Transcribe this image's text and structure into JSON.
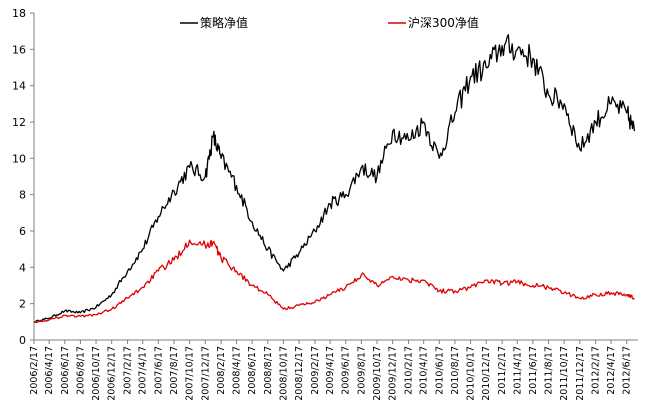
{
  "chart_data": {
    "type": "line",
    "title": "",
    "xlabel": "",
    "ylabel": "",
    "ylim": [
      0,
      18
    ],
    "yticks": [
      0,
      2,
      4,
      6,
      8,
      10,
      12,
      14,
      16,
      18
    ],
    "grid": false,
    "legend_position": "top",
    "x_tick_labels": [
      "2006/2/17",
      "2006/4/17",
      "2006/6/17",
      "2006/8/17",
      "2006/10/17",
      "2006/12/17",
      "2007/2/17",
      "2007/4/17",
      "2007/6/17",
      "2007/8/17",
      "2007/10/17",
      "2007/12/17",
      "2008/2/17",
      "2008/4/17",
      "2008/6/17",
      "2008/8/17",
      "2008/10/17",
      "2008/12/17",
      "2009/2/17",
      "2009/4/17",
      "2009/6/17",
      "2009/8/17",
      "2009/10/17",
      "2009/12/17",
      "2010/2/17",
      "2010/4/17",
      "2010/6/17",
      "2010/8/17",
      "2010/10/17",
      "2010/12/17",
      "2011/2/17",
      "2011/4/17",
      "2011/6/17",
      "2011/8/17",
      "2011/10/17",
      "2011/12/17",
      "2012/2/17",
      "2012/4/17",
      "2012/6/17"
    ],
    "series": [
      {
        "name": "策略净值",
        "color": "#000000",
        "x": [
          "2006/2/17",
          "2006/4/17",
          "2006/6/17",
          "2006/8/17",
          "2006/10/17",
          "2006/12/17",
          "2007/2/17",
          "2007/4/17",
          "2007/6/17",
          "2007/8/17",
          "2007/10/17",
          "2007/12/17",
          "2008/1/17",
          "2008/2/17",
          "2008/4/17",
          "2008/6/17",
          "2008/8/17",
          "2008/10/17",
          "2008/12/17",
          "2009/2/17",
          "2009/4/17",
          "2009/6/17",
          "2009/8/17",
          "2009/10/17",
          "2009/12/17",
          "2010/2/17",
          "2010/4/17",
          "2010/6/17",
          "2010/8/17",
          "2010/10/17",
          "2010/12/17",
          "2011/2/17",
          "2011/4/17",
          "2011/6/17",
          "2011/8/17",
          "2011/10/17",
          "2011/12/17",
          "2012/2/17",
          "2012/4/17",
          "2012/6/17",
          "2012/7/17"
        ],
        "values": [
          1.0,
          1.2,
          1.6,
          1.5,
          1.8,
          2.5,
          3.8,
          5.0,
          6.8,
          8.2,
          9.5,
          9.0,
          11.2,
          10.0,
          8.5,
          6.5,
          5.0,
          3.8,
          4.8,
          6.0,
          7.5,
          8.0,
          9.5,
          9.0,
          11.5,
          11.0,
          12.0,
          10.0,
          12.5,
          14.5,
          15.0,
          16.2,
          16.0,
          15.5,
          13.5,
          13.0,
          10.5,
          12.0,
          13.0,
          12.5,
          11.5
        ]
      },
      {
        "name": "沪深300净值",
        "color": "#e00000",
        "x": [
          "2006/2/17",
          "2006/4/17",
          "2006/6/17",
          "2006/8/17",
          "2006/10/17",
          "2006/12/17",
          "2007/2/17",
          "2007/4/17",
          "2007/6/17",
          "2007/8/17",
          "2007/10/17",
          "2007/12/17",
          "2008/1/17",
          "2008/2/17",
          "2008/4/17",
          "2008/6/17",
          "2008/8/17",
          "2008/10/17",
          "2008/12/17",
          "2009/2/17",
          "2009/4/17",
          "2009/6/17",
          "2009/8/17",
          "2009/10/17",
          "2009/12/17",
          "2010/2/17",
          "2010/4/17",
          "2010/6/17",
          "2010/8/17",
          "2010/10/17",
          "2010/12/17",
          "2011/2/17",
          "2011/4/17",
          "2011/6/17",
          "2011/8/17",
          "2011/10/17",
          "2011/12/17",
          "2012/2/17",
          "2012/4/17",
          "2012/6/17",
          "2012/7/17"
        ],
        "values": [
          1.0,
          1.1,
          1.35,
          1.3,
          1.4,
          1.7,
          2.3,
          2.9,
          3.8,
          4.4,
          5.5,
          5.2,
          5.4,
          4.5,
          3.8,
          3.0,
          2.5,
          1.7,
          1.9,
          2.1,
          2.5,
          2.9,
          3.6,
          3.0,
          3.5,
          3.3,
          3.3,
          2.7,
          2.7,
          2.9,
          3.3,
          3.1,
          3.2,
          3.0,
          2.9,
          2.6,
          2.3,
          2.5,
          2.6,
          2.5,
          2.3
        ]
      }
    ]
  }
}
